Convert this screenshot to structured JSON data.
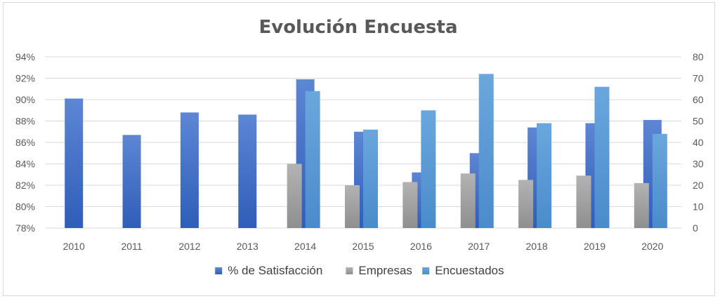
{
  "chart_data": {
    "type": "bar",
    "title": "Evolución Encuesta",
    "categories": [
      "2010",
      "2011",
      "2012",
      "2013",
      "2014",
      "2015",
      "2016",
      "2017",
      "2018",
      "2019",
      "2020"
    ],
    "series": [
      {
        "name": "% de Satisfacción",
        "axis": "left",
        "color": "#4472c4",
        "values": [
          90.1,
          86.7,
          88.8,
          88.6,
          91.9,
          87.0,
          83.2,
          85.0,
          87.4,
          87.8,
          88.1
        ]
      },
      {
        "name": "Empresas",
        "axis": "right",
        "color": "#a5a5a5",
        "values": [
          null,
          null,
          null,
          null,
          30,
          20,
          21.5,
          25.5,
          22.5,
          24.5,
          21
        ]
      },
      {
        "name": "Encuestados",
        "axis": "right",
        "color": "#5b9bd5",
        "values": [
          null,
          null,
          null,
          null,
          64,
          46,
          55,
          72,
          49,
          66,
          44
        ]
      }
    ],
    "y_left": {
      "min": 78,
      "max": 94,
      "step": 2,
      "ticks": [
        "78%",
        "80%",
        "82%",
        "84%",
        "86%",
        "88%",
        "90%",
        "92%",
        "94%"
      ]
    },
    "y_right": {
      "min": 0,
      "max": 80,
      "step": 10,
      "ticks": [
        "0",
        "10",
        "20",
        "30",
        "40",
        "50",
        "60",
        "70",
        "80"
      ]
    },
    "grid": true,
    "legend_position": "bottom",
    "gridline_color": "#d9d9d9",
    "axis_text_color": "#595959"
  }
}
